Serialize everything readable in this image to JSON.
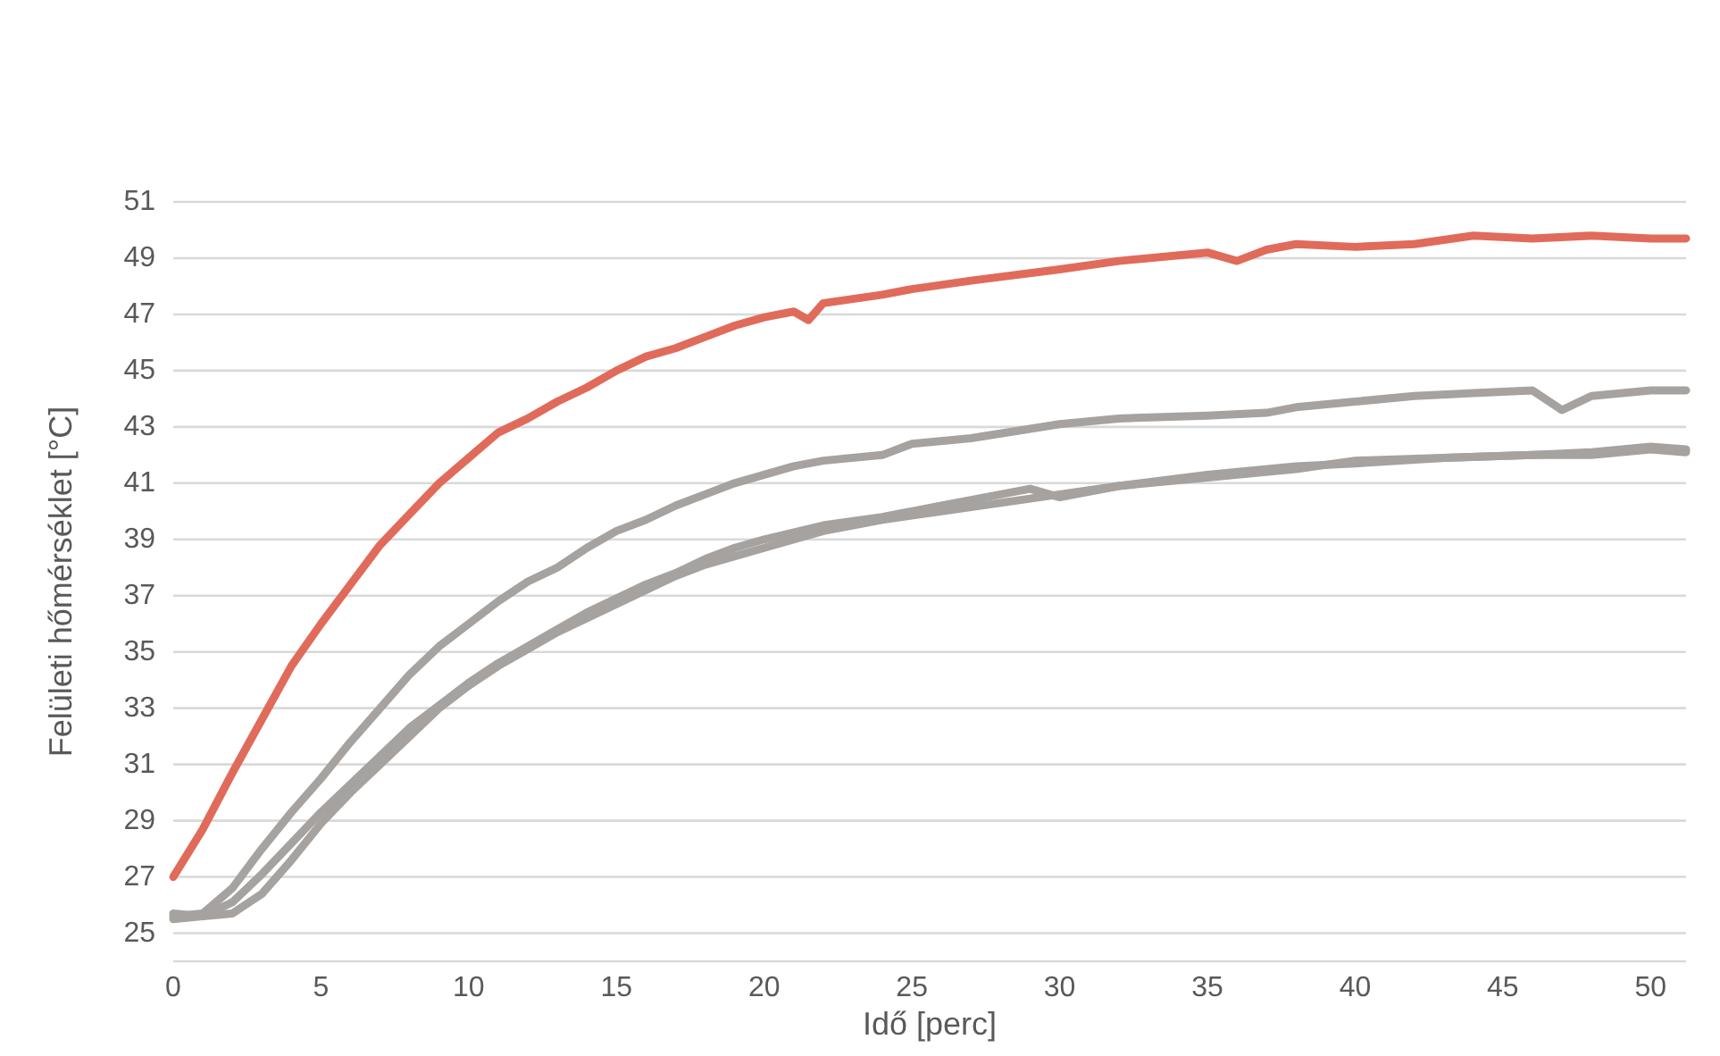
{
  "chart_data": {
    "type": "line",
    "xlabel": "Idő [perc]",
    "ylabel": "Felületi hőmérséklet [°C]",
    "xlim": [
      0,
      51.2
    ],
    "xticks": [
      0,
      5,
      10,
      15,
      20,
      25,
      30,
      35,
      40,
      45,
      50
    ],
    "ylim": [
      24,
      51
    ],
    "yticks": [
      25,
      27,
      29,
      31,
      33,
      35,
      37,
      39,
      41,
      43,
      45,
      47,
      49,
      51
    ],
    "grid": "y",
    "marker": "none",
    "line_style": "solid",
    "series": [
      {
        "color": "#a5a2a0",
        "x": [
          0,
          1,
          2,
          3,
          4,
          5,
          6,
          7,
          8,
          9,
          10,
          11,
          12,
          13,
          14,
          15,
          16,
          17,
          18,
          19,
          20,
          21,
          22,
          24,
          25,
          27,
          30,
          32,
          35,
          37,
          38,
          40,
          42,
          44,
          46,
          47,
          48,
          50,
          51.2
        ],
        "values": [
          25.6,
          25.7,
          26.6,
          28.0,
          29.3,
          30.5,
          31.8,
          33.0,
          34.2,
          35.2,
          36.0,
          36.8,
          37.5,
          38.0,
          38.7,
          39.3,
          39.7,
          40.2,
          40.6,
          41.0,
          41.3,
          41.6,
          41.8,
          42.0,
          42.4,
          42.6,
          43.1,
          43.3,
          43.4,
          43.5,
          43.7,
          43.9,
          44.1,
          44.2,
          44.3,
          43.6,
          44.1,
          44.3,
          44.3
        ]
      },
      {
        "color": "#a5a2a0",
        "x": [
          0,
          1,
          2,
          3,
          4,
          5,
          6,
          7,
          8,
          9,
          10,
          11,
          12,
          13,
          14,
          15,
          16,
          17,
          18,
          19,
          20,
          22,
          24,
          26,
          28,
          29,
          30,
          32,
          35,
          38,
          40,
          43,
          46,
          48,
          50,
          51.2
        ],
        "values": [
          25.5,
          25.6,
          26.1,
          27.1,
          28.2,
          29.3,
          30.3,
          31.3,
          32.3,
          33.1,
          33.9,
          34.6,
          35.2,
          35.8,
          36.4,
          36.9,
          37.4,
          37.8,
          38.3,
          38.7,
          39.0,
          39.5,
          39.8,
          40.2,
          40.6,
          40.8,
          40.5,
          40.9,
          41.3,
          41.6,
          41.7,
          41.9,
          42.0,
          42.0,
          42.2,
          42.1
        ]
      },
      {
        "color": "#a5a2a0",
        "x": [
          0,
          1,
          2,
          3,
          4,
          5,
          6,
          7,
          8,
          9,
          10,
          11,
          12,
          13,
          14,
          15,
          16,
          17,
          18,
          19,
          20,
          22,
          24,
          26,
          28,
          30,
          32,
          35,
          38,
          40,
          43,
          46,
          48,
          50,
          51.2
        ],
        "values": [
          25.7,
          25.6,
          25.7,
          26.4,
          27.6,
          28.9,
          30.0,
          31.0,
          32.0,
          33.0,
          33.8,
          34.5,
          35.1,
          35.7,
          36.2,
          36.7,
          37.2,
          37.7,
          38.1,
          38.4,
          38.7,
          39.3,
          39.7,
          40.0,
          40.3,
          40.6,
          40.9,
          41.2,
          41.5,
          41.8,
          41.9,
          42.0,
          42.1,
          42.3,
          42.2
        ]
      },
      {
        "color": "#e06b5b",
        "x": [
          0,
          1,
          2,
          3,
          4,
          5,
          6,
          7,
          8,
          9,
          10,
          11,
          12,
          13,
          14,
          15,
          16,
          17,
          18,
          19,
          20,
          21,
          21.5,
          22,
          24,
          25,
          27,
          30,
          32,
          35,
          36,
          37,
          38,
          40,
          42,
          44,
          46,
          48,
          50,
          51.2
        ],
        "values": [
          27.0,
          28.7,
          30.7,
          32.6,
          34.5,
          36.0,
          37.4,
          38.8,
          39.9,
          41.0,
          41.9,
          42.8,
          43.3,
          43.9,
          44.4,
          45.0,
          45.5,
          45.8,
          46.2,
          46.6,
          46.9,
          47.1,
          46.8,
          47.4,
          47.7,
          47.9,
          48.2,
          48.6,
          48.9,
          49.2,
          48.9,
          49.3,
          49.5,
          49.4,
          49.5,
          49.8,
          49.7,
          49.8,
          49.7,
          49.7
        ]
      }
    ]
  }
}
